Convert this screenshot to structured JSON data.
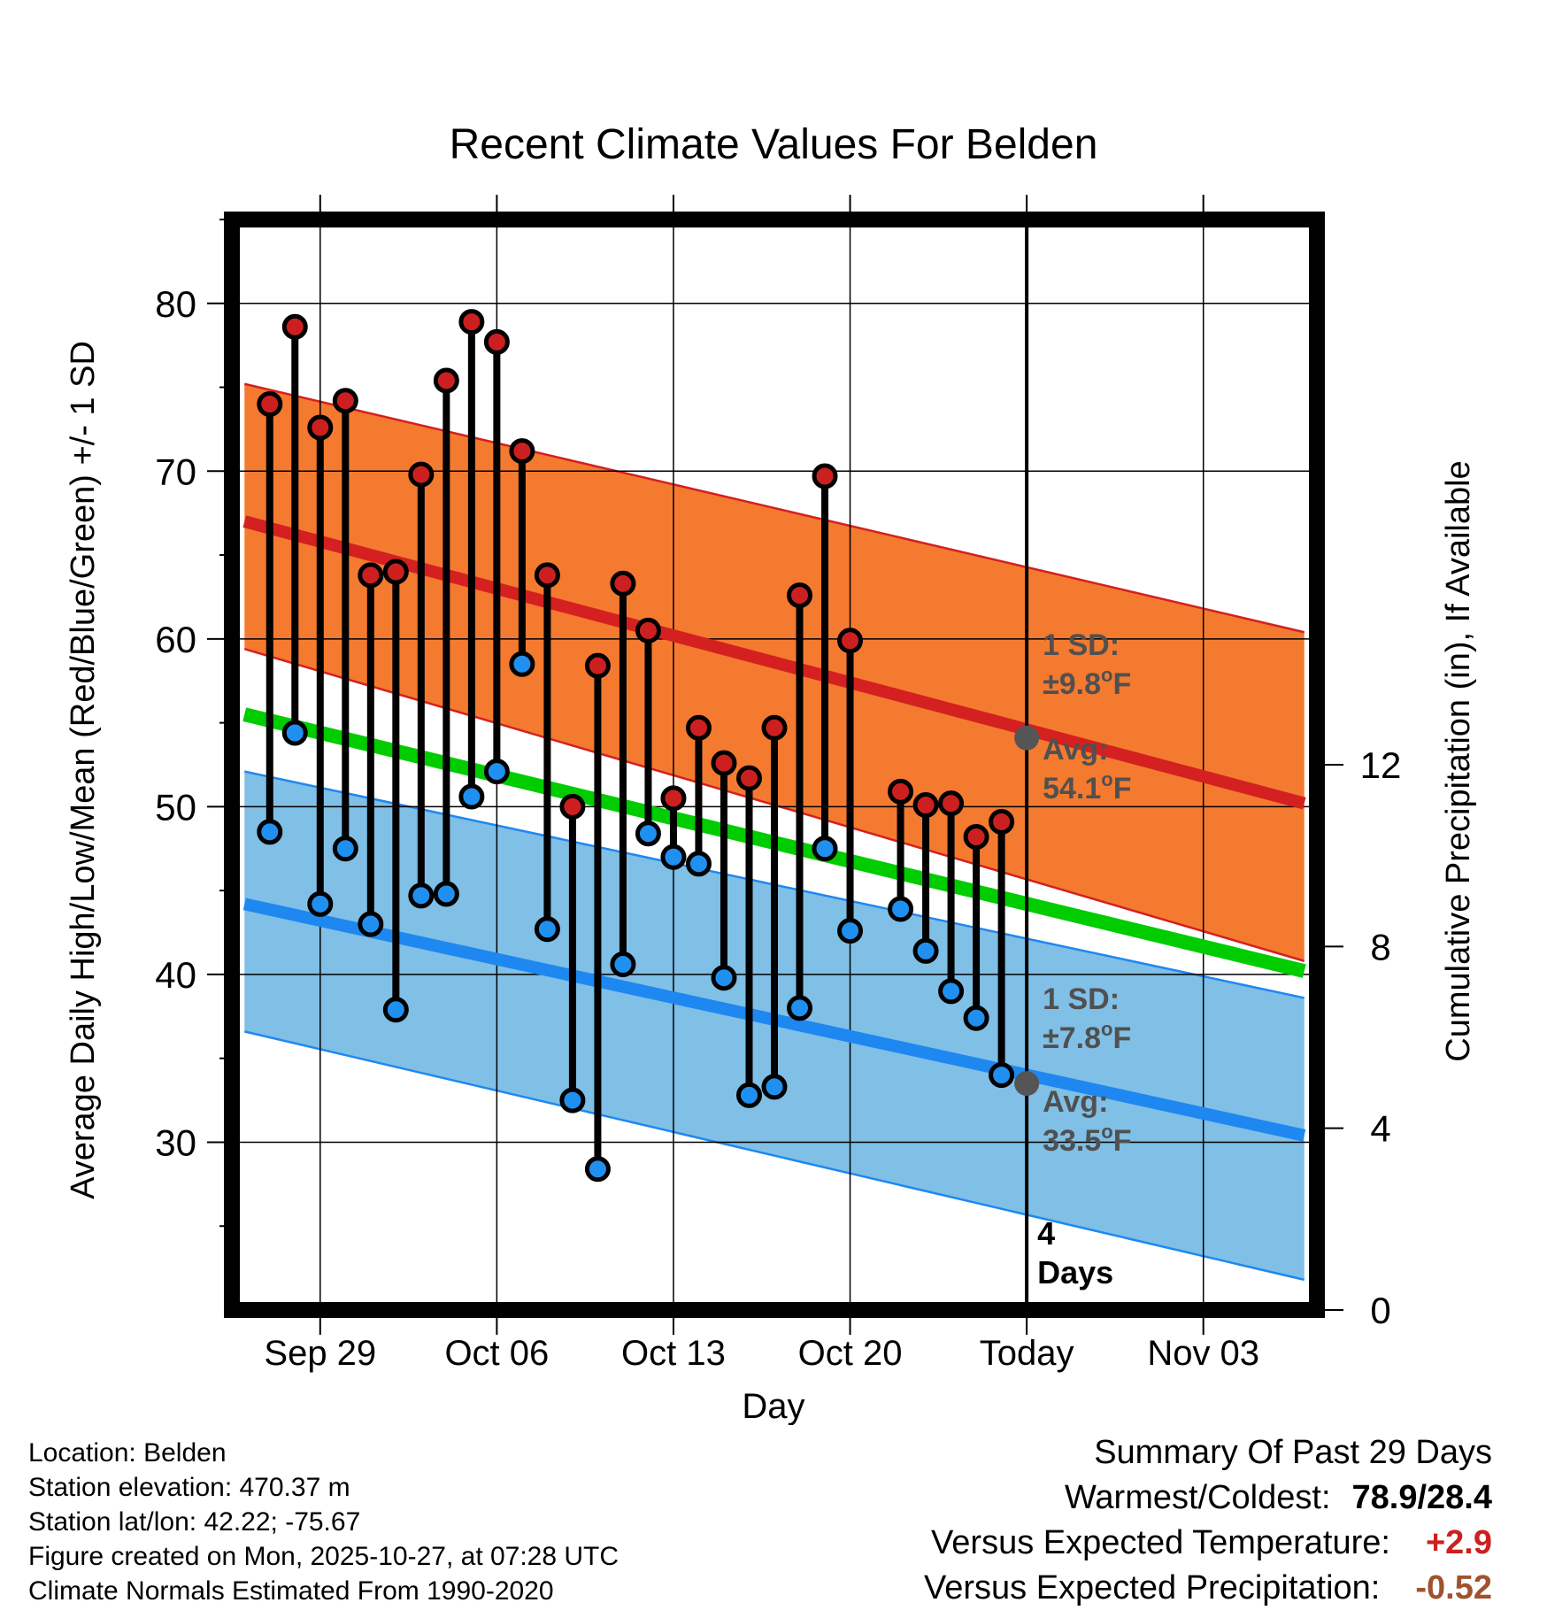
{
  "chart_data": {
    "type": "scatter",
    "title": "Recent Climate Values For Belden",
    "xlabel": "Day",
    "ylabel": "Average Daily High/Low/Mean (Red/Blue/Green) +/- 1 SD",
    "y2label": "Cumulative Precipitation (in), If Available",
    "xlim": [
      -3.5,
      39.5
    ],
    "ylim": [
      20,
      85
    ],
    "y2lim": [
      0,
      24
    ],
    "x_ticks": [
      {
        "x": 0,
        "label": "Sep 29"
      },
      {
        "x": 7,
        "label": "Oct 06"
      },
      {
        "x": 14,
        "label": "Oct 13"
      },
      {
        "x": 21,
        "label": "Oct 20"
      },
      {
        "x": 28,
        "label": "Today"
      },
      {
        "x": 35,
        "label": "Nov 03"
      }
    ],
    "y_ticks": [
      30,
      40,
      50,
      60,
      70,
      80
    ],
    "y2_ticks": [
      0,
      4,
      8,
      12
    ],
    "normals": {
      "x": [
        -3,
        39
      ],
      "high_mean": [
        67.0,
        50.2
      ],
      "high_sd_upper": [
        75.2,
        60.4
      ],
      "high_sd_lower": [
        59.4,
        40.8
      ],
      "low_mean": [
        44.2,
        30.4
      ],
      "low_sd_upper": [
        52.1,
        38.6
      ],
      "low_sd_lower": [
        36.6,
        21.8
      ],
      "daily_mean": [
        55.5,
        40.2
      ]
    },
    "observations": {
      "day": [
        -2,
        -1,
        0,
        1,
        2,
        3,
        4,
        5,
        6,
        7,
        8,
        9,
        10,
        11,
        12,
        13,
        14,
        15,
        16,
        17,
        18,
        19,
        20,
        21,
        23,
        24,
        25,
        26,
        27
      ],
      "high": [
        74.0,
        78.6,
        72.6,
        74.2,
        63.8,
        64.0,
        69.8,
        75.4,
        78.9,
        77.7,
        71.2,
        63.8,
        50.0,
        58.4,
        63.3,
        60.5,
        50.5,
        54.7,
        52.6,
        51.7,
        54.7,
        62.6,
        69.7,
        59.9,
        50.9,
        50.1,
        50.2,
        48.2,
        49.1
      ],
      "low": [
        48.5,
        54.4,
        44.2,
        47.5,
        43.0,
        37.9,
        44.7,
        44.8,
        50.6,
        52.1,
        58.5,
        42.7,
        32.5,
        28.4,
        40.6,
        48.4,
        47.0,
        46.6,
        39.8,
        32.8,
        33.3,
        38.0,
        47.5,
        42.6,
        43.9,
        41.4,
        39.0,
        37.4,
        34.0
      ]
    },
    "today_x": 28,
    "annotations": {
      "high_sd": {
        "line1": "1 SD:",
        "line2": "±9.8",
        "unit": "o",
        "suffix": "F"
      },
      "high_avg": {
        "line1": "Avg:",
        "line2": "54.1",
        "unit": "o",
        "suffix": "F",
        "value": 54.1
      },
      "low_sd": {
        "line1": "1 SD:",
        "line2": "±7.8",
        "unit": "o",
        "suffix": "F"
      },
      "low_avg": {
        "line1": "Avg:",
        "line2": "33.5",
        "unit": "o",
        "suffix": "F",
        "value": 33.5
      },
      "days": {
        "line1": "4",
        "line2": "Days"
      }
    },
    "colors": {
      "high_band": "#F47A30",
      "high_band_edge": "#D42020",
      "high_mean": "#D42020",
      "low_band": "#80BFE6",
      "low_band_edge": "#1E88F0",
      "low_mean": "#1E88F0",
      "daily_mean": "#00CC00",
      "high_point": "#CC2020",
      "low_point": "#2090F0",
      "avg_point": "#555555",
      "annot_text": "#505050"
    }
  },
  "meta": {
    "location": "Location: Belden",
    "elevation": "Station elevation: 470.37 m",
    "latlon": "Station lat/lon: 42.22; -75.67",
    "created": "Figure created on Mon, 2025-10-27, at 07:28 UTC",
    "normals": "Climate Normals Estimated From 1990-2020"
  },
  "summary": {
    "heading": "Summary Of Past 29 Days",
    "warm_cold_label": "Warmest/Coldest:",
    "warm_cold_value": "78.9/28.4",
    "temp_label": "Versus Expected Temperature:",
    "temp_value": "+2.9",
    "temp_color": "#CC2020",
    "precip_label": "Versus Expected Precipitation:",
    "precip_value": "-0.52",
    "precip_color": "#A0522D"
  }
}
